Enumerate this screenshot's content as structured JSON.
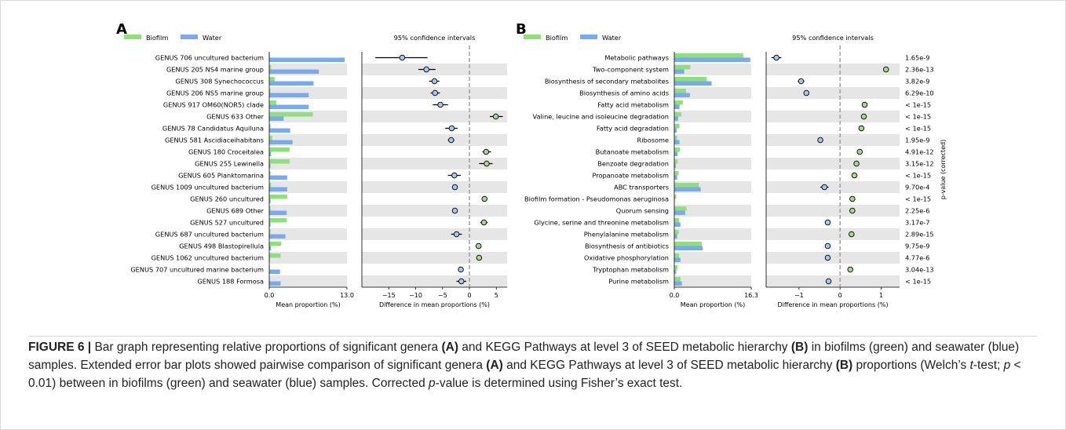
{
  "figure": {
    "caption": {
      "label": "FIGURE 6 |",
      "segments": [
        {
          "t": "Bar graph representing relative proportions of significant genera "
        },
        {
          "t": "(A)",
          "b": true
        },
        {
          "t": " and KEGG Pathways at level 3 of SEED metabolic hierarchy "
        },
        {
          "t": "(B)",
          "b": true
        },
        {
          "t": " in biofilms (green) and seawater (blue) samples. Extended error bar plots showed pairwise comparison of significant genera "
        },
        {
          "t": "(A)",
          "b": true
        },
        {
          "t": " and KEGG Pathways at level 3 of SEED metabolic hierarchy "
        },
        {
          "t": "(B)",
          "b": true
        },
        {
          "t": " proportions (Welch’s "
        },
        {
          "t": "t",
          "i": true
        },
        {
          "t": "-test; "
        },
        {
          "t": "p",
          "i": true
        },
        {
          "t": " < 0.01) between in biofilms (green) and seawater (blue) samples. Corrected "
        },
        {
          "t": "p",
          "i": true
        },
        {
          "t": "-value is determined using Fisher’s exact test."
        }
      ]
    }
  },
  "colors": {
    "biofilm": "#8de07a",
    "water": "#79aaf0",
    "point_biofilm": "#a8d88f",
    "point_water": "#a9c6ee",
    "stripe": "#e6e6e6",
    "zero_line": "#888888"
  },
  "chart_data": [
    {
      "panel_label": "A",
      "type": "bar",
      "legend": [
        "Biofilm",
        "Water"
      ],
      "ci_title": "95% confidence intervals",
      "xlabel": "Mean proportion (%)",
      "xlim": [
        0,
        13.0
      ],
      "x_ticks": [
        "0.0",
        "13.0"
      ],
      "ci_xlabel": "Difference in mean proportions (%)",
      "ci_xlim": [
        -20,
        7
      ],
      "ci_ticks": [
        -15,
        -10,
        -5,
        0,
        5
      ],
      "ci_tick_labels": [
        "−15",
        "−10",
        "−5",
        "0",
        "5"
      ],
      "categories": [
        "GENUS 706 uncultured bacterium",
        "GENUS 205 NS4 marine group",
        "GENUS 308 Synechococcus",
        "GENUS 206 NS5 marine group",
        "GENUS 917 OM60(NOR5) clade",
        "GENUS 633 Other",
        "GENUS 78 Candidatus Aquiluna",
        "GENUS 581 Ascidiaceihabitans",
        "GENUS 180 Croceitalea",
        "GENUS 255 Lewinella",
        "GENUS 605 Planktomarina",
        "GENUS 1009 uncultured bacterium",
        "GENUS 260 uncultured",
        "GENUS 689 Other",
        "GENUS 527 uncultured",
        "GENUS 687 uncultured bacterium",
        "GENUS 498 Blastopirellula",
        "GENUS 1062 uncultured bacterium",
        "GENUS 707 uncultured marine bacterium",
        "GENUS 188 Formosa"
      ],
      "series": [
        {
          "name": "Biofilm",
          "values": [
            0.1,
            0.3,
            0.9,
            0.2,
            1.2,
            7.3,
            0.2,
            0.5,
            3.4,
            3.4,
            0.2,
            0.3,
            3.0,
            0.2,
            2.9,
            0.2,
            2.0,
            1.9,
            0.1,
            0.1
          ]
        },
        {
          "name": "Water",
          "values": [
            12.6,
            8.3,
            7.4,
            6.6,
            6.6,
            2.4,
            3.5,
            3.9,
            0.3,
            0.2,
            3.0,
            3.0,
            0.2,
            2.9,
            0.2,
            2.7,
            0.3,
            0.1,
            1.8,
            1.9
          ]
        }
      ],
      "differences": [
        {
          "value": -12.5,
          "ci": [
            -17.5,
            -7.8
          ]
        },
        {
          "value": -8.0,
          "ci": [
            -9.5,
            -6.3
          ]
        },
        {
          "value": -6.5,
          "ci": [
            -7.5,
            -5.6
          ]
        },
        {
          "value": -6.4,
          "ci": [
            -7.2,
            -5.5
          ]
        },
        {
          "value": -5.4,
          "ci": [
            -6.8,
            -4.0
          ]
        },
        {
          "value": 4.9,
          "ci": [
            3.8,
            6.2
          ]
        },
        {
          "value": -3.3,
          "ci": [
            -4.5,
            -2.2
          ]
        },
        {
          "value": -3.4,
          "ci": [
            -4.0,
            -2.8
          ]
        },
        {
          "value": 3.1,
          "ci": [
            2.4,
            4.0
          ]
        },
        {
          "value": 3.2,
          "ci": [
            1.8,
            4.3
          ]
        },
        {
          "value": -2.8,
          "ci": [
            -4.0,
            -1.6
          ]
        },
        {
          "value": -2.7,
          "ci": [
            -3.1,
            -2.3
          ]
        },
        {
          "value": 2.8,
          "ci": [
            2.4,
            3.2
          ]
        },
        {
          "value": -2.7,
          "ci": [
            -3.0,
            -2.4
          ]
        },
        {
          "value": 2.7,
          "ci": [
            2.0,
            3.4
          ]
        },
        {
          "value": -2.4,
          "ci": [
            -3.4,
            -1.4
          ]
        },
        {
          "value": 1.7,
          "ci": [
            1.4,
            2.0
          ]
        },
        {
          "value": 1.8,
          "ci": [
            1.4,
            2.2
          ]
        },
        {
          "value": -1.6,
          "ci": [
            -1.9,
            -1.3
          ]
        },
        {
          "value": -1.5,
          "ci": [
            -2.4,
            -0.6
          ]
        }
      ]
    },
    {
      "panel_label": "B",
      "type": "bar",
      "legend": [
        "Biofilm",
        "Water"
      ],
      "ci_title": "95% confidence intervals",
      "xlabel": "Mean proportion (%)",
      "xlim": [
        0,
        16.3
      ],
      "x_ticks": [
        "0.0",
        "16.3"
      ],
      "ci_xlabel": "Difference in mean proportions (%)",
      "ci_xlim": [
        -1.8,
        1.45
      ],
      "ci_ticks": [
        -1,
        0,
        1
      ],
      "ci_tick_labels": [
        "−1",
        "0",
        "1"
      ],
      "pvalue_axis_label": "p-value (corrected)",
      "categories": [
        "Metabolic pathways",
        "Two-component system",
        "Biosynthesis of secondary metabolites",
        "Biosynthesis of amino acids",
        "Fatty acid metabolism",
        "Valine, leucine and isoleucine degradation",
        "Fatty acid degradation",
        "Ribosome",
        "Butanoate metabolism",
        "Benzoate degradation",
        "Propanoate metabolism",
        "ABC transporters",
        "Biofilm formation - Pseudomonas aeruginosa",
        "Quorum sensing",
        "Glycine, serine and threonine metabolism",
        "Phenylalanine metabolism",
        "Biosynthesis of antibiotics",
        "Oxidative phosphorylation",
        "Tryptophan metabolism",
        "Purine metabolism"
      ],
      "p_values": [
        "1.65e-9",
        "2.36e-13",
        "3.82e-9",
        "6.29e-10",
        "< 1e-15",
        "< 1e-15",
        "< 1e-15",
        "1.95e-9",
        "4.91e-12",
        "3.15e-12",
        "< 1e-15",
        "9.70e-4",
        "< 1e-15",
        "2.25e-6",
        "3.17e-7",
        "2.89e-15",
        "9.75e-9",
        "4.77e-6",
        "3.04e-13",
        "< 1e-15"
      ],
      "series": [
        {
          "name": "Biofilm",
          "values": [
            14.6,
            3.4,
            6.9,
            2.5,
            1.8,
            1.5,
            1.1,
            0.6,
            1.2,
            0.7,
            0.9,
            5.2,
            0.4,
            2.6,
            1.0,
            0.9,
            5.8,
            1.0,
            0.7,
            1.3
          ]
        },
        {
          "name": "Water",
          "values": [
            16.1,
            2.1,
            7.9,
            3.3,
            1.1,
            0.8,
            0.5,
            1.1,
            0.7,
            0.3,
            0.6,
            5.6,
            0.1,
            2.3,
            1.3,
            0.6,
            6.0,
            1.3,
            0.4,
            1.6
          ]
        }
      ],
      "differences": [
        {
          "value": -1.55,
          "ci": [
            -1.67,
            -1.43
          ]
        },
        {
          "value": 1.12,
          "ci": [
            1.06,
            1.18
          ]
        },
        {
          "value": -0.95,
          "ci": [
            -1.03,
            -0.87
          ]
        },
        {
          "value": -0.82,
          "ci": [
            -0.87,
            -0.77
          ]
        },
        {
          "value": 0.6,
          "ci": [
            0.58,
            0.62
          ]
        },
        {
          "value": 0.58,
          "ci": [
            0.56,
            0.6
          ]
        },
        {
          "value": 0.52,
          "ci": [
            0.5,
            0.54
          ]
        },
        {
          "value": -0.48,
          "ci": [
            -0.5,
            -0.46
          ]
        },
        {
          "value": 0.48,
          "ci": [
            0.45,
            0.51
          ]
        },
        {
          "value": 0.4,
          "ci": [
            0.38,
            0.42
          ]
        },
        {
          "value": 0.35,
          "ci": [
            0.33,
            0.37
          ]
        },
        {
          "value": -0.38,
          "ci": [
            -0.48,
            -0.28
          ]
        },
        {
          "value": 0.3,
          "ci": [
            0.28,
            0.32
          ]
        },
        {
          "value": 0.3,
          "ci": [
            0.23,
            0.37
          ]
        },
        {
          "value": -0.3,
          "ci": [
            -0.33,
            -0.27
          ]
        },
        {
          "value": 0.28,
          "ci": [
            0.26,
            0.3
          ]
        },
        {
          "value": -0.3,
          "ci": [
            -0.32,
            -0.28
          ]
        },
        {
          "value": -0.3,
          "ci": [
            -0.32,
            -0.28
          ]
        },
        {
          "value": 0.25,
          "ci": [
            0.23,
            0.27
          ]
        },
        {
          "value": -0.28,
          "ci": [
            -0.3,
            -0.26
          ]
        }
      ]
    }
  ]
}
